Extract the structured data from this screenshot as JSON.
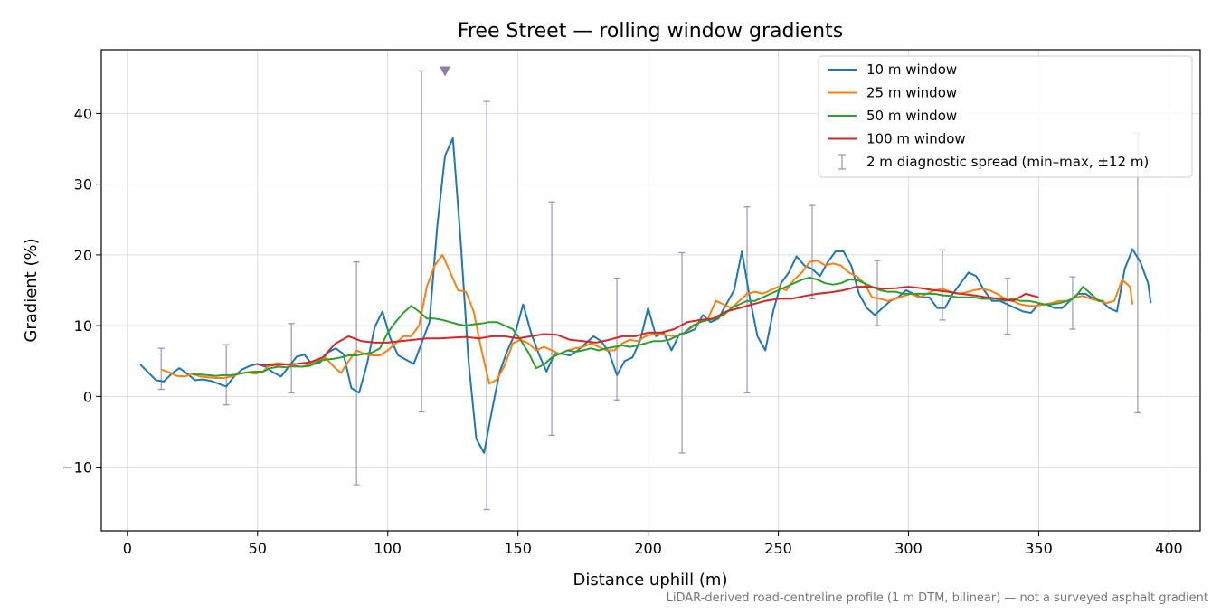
{
  "chart_data": {
    "type": "line",
    "title": "Free Street — rolling window gradients",
    "xlabel": "Distance uphill (m)",
    "ylabel": "Gradient (%)",
    "footnote": "LiDAR-derived road-centreline profile (1 m DTM, bilinear) — not a surveyed asphalt gradient",
    "xlim": [
      -10,
      412
    ],
    "ylim": [
      -19,
      49
    ],
    "xticks": [
      0,
      50,
      100,
      150,
      200,
      250,
      300,
      350,
      400
    ],
    "yticks": [
      -10,
      0,
      10,
      20,
      30,
      40
    ],
    "xtick_labels": [
      "0",
      "50",
      "100",
      "150",
      "200",
      "250",
      "300",
      "350",
      "400"
    ],
    "ytick_labels": [
      "−10",
      "0",
      "10",
      "20",
      "30",
      "40"
    ],
    "grid": true,
    "legend_position": "top-right",
    "series": [
      {
        "name": "10 m window",
        "color": "#1f77b4",
        "x": [
          5,
          8,
          11,
          14,
          17,
          20,
          23,
          26,
          29,
          32,
          35,
          38,
          41,
          44,
          47,
          50,
          53,
          56,
          59,
          62,
          65,
          68,
          71,
          74,
          77,
          80,
          83,
          86,
          89,
          92,
          95,
          98,
          101,
          104,
          107,
          110,
          113,
          116,
          119,
          122,
          125,
          128,
          131,
          134,
          137,
          140,
          143,
          146,
          149,
          152,
          155,
          158,
          161,
          164,
          167,
          170,
          173,
          176,
          179,
          182,
          185,
          188,
          191,
          194,
          197,
          200,
          203,
          206,
          209,
          212,
          215,
          218,
          221,
          224,
          227,
          230,
          233,
          236,
          239,
          242,
          245,
          248,
          251,
          254,
          257,
          260,
          263,
          266,
          269,
          272,
          275,
          278,
          281,
          284,
          287,
          290,
          293,
          296,
          299,
          302,
          305,
          308,
          311,
          314,
          317,
          320,
          323,
          326,
          329,
          332,
          335,
          338,
          341,
          344,
          347,
          350,
          353,
          356,
          359,
          362,
          365,
          368,
          371,
          374,
          377,
          380,
          383,
          386,
          389,
          392,
          393
        ],
        "values": [
          4.5,
          3.4,
          2.3,
          2.1,
          3.2,
          4.0,
          3.2,
          2.3,
          2.4,
          2.2,
          1.8,
          1.4,
          2.8,
          3.8,
          4.3,
          4.6,
          4.2,
          3.4,
          2.8,
          4.2,
          5.6,
          5.9,
          4.5,
          4.8,
          6.2,
          6.8,
          6.0,
          1.2,
          0.5,
          4.5,
          9.8,
          12.0,
          8.2,
          5.8,
          5.2,
          4.6,
          7.5,
          10.5,
          24.0,
          34.0,
          36.5,
          22.0,
          5.0,
          -6.0,
          -8.0,
          -2.0,
          3.5,
          6.5,
          9.0,
          13.0,
          9.0,
          6.0,
          3.5,
          6.0,
          6.0,
          5.8,
          6.5,
          7.5,
          8.5,
          7.8,
          6.2,
          3.0,
          5.0,
          5.5,
          8.0,
          12.5,
          8.5,
          9.0,
          6.5,
          8.8,
          9.0,
          9.5,
          11.5,
          10.5,
          11.0,
          13.0,
          15.0,
          20.5,
          14.0,
          8.5,
          6.5,
          12.0,
          16.0,
          17.5,
          19.8,
          18.5,
          18.0,
          17.0,
          19.0,
          20.5,
          20.5,
          18.5,
          14.5,
          12.5,
          11.5,
          12.5,
          13.5,
          14.0,
          15.0,
          14.5,
          14.0,
          14.0,
          12.5,
          12.5,
          14.5,
          16.0,
          17.5,
          17.0,
          15.0,
          13.5,
          13.5,
          13.0,
          12.5,
          12.0,
          11.8,
          13.0,
          13.0,
          12.5,
          12.5,
          13.5,
          14.5,
          14.5,
          13.8,
          13.5,
          12.5,
          12.0,
          18.0,
          20.8,
          19.0,
          16.0,
          13.2
        ]
      },
      {
        "name": "25 m window",
        "color": "#ff7f0e",
        "x": [
          13,
          16,
          19,
          22,
          25,
          28,
          31,
          34,
          37,
          40,
          43,
          46,
          49,
          52,
          55,
          58,
          61,
          64,
          67,
          70,
          73,
          76,
          79,
          82,
          85,
          88,
          91,
          94,
          97,
          100,
          103,
          106,
          109,
          112,
          115,
          118,
          121,
          124,
          127,
          130,
          133,
          136,
          139,
          142,
          145,
          148,
          151,
          154,
          157,
          160,
          163,
          166,
          169,
          172,
          175,
          178,
          181,
          184,
          187,
          190,
          193,
          196,
          199,
          202,
          205,
          208,
          211,
          214,
          217,
          220,
          223,
          226,
          229,
          232,
          235,
          238,
          241,
          244,
          247,
          250,
          253,
          256,
          259,
          262,
          265,
          268,
          271,
          274,
          277,
          280,
          283,
          286,
          289,
          292,
          295,
          298,
          301,
          304,
          307,
          310,
          313,
          316,
          319,
          322,
          325,
          328,
          331,
          334,
          337,
          340,
          343,
          346,
          349,
          352,
          355,
          358,
          361,
          364,
          367,
          370,
          373,
          376,
          379,
          382,
          385,
          386
        ],
        "values": [
          3.8,
          3.4,
          2.9,
          2.8,
          3.2,
          2.8,
          2.7,
          2.6,
          2.6,
          2.8,
          3.2,
          3.4,
          3.2,
          3.5,
          4.5,
          4.7,
          4.5,
          4.2,
          4.2,
          4.5,
          5.0,
          5.5,
          4.3,
          3.3,
          5.0,
          6.5,
          6.0,
          5.8,
          5.8,
          6.5,
          7.5,
          8.5,
          8.5,
          10.0,
          15.5,
          18.5,
          20.0,
          17.5,
          15.0,
          14.8,
          12.0,
          6.5,
          1.8,
          2.4,
          4.5,
          7.5,
          8.0,
          7.5,
          6.5,
          7.0,
          6.5,
          6.0,
          6.5,
          6.8,
          7.0,
          7.5,
          7.0,
          6.5,
          6.5,
          7.5,
          8.0,
          7.8,
          8.5,
          8.8,
          8.8,
          8.6,
          8.5,
          9.0,
          9.8,
          10.5,
          11.0,
          13.5,
          13.0,
          12.5,
          13.5,
          14.5,
          14.8,
          14.5,
          15.0,
          15.5,
          15.0,
          16.5,
          17.5,
          19.0,
          19.2,
          18.5,
          18.8,
          18.5,
          17.5,
          17.0,
          16.0,
          14.0,
          13.8,
          13.5,
          13.8,
          14.2,
          14.5,
          14.0,
          14.5,
          15.0,
          15.2,
          14.8,
          14.5,
          14.7,
          15.0,
          15.2,
          15.0,
          14.5,
          13.8,
          13.5,
          13.0,
          12.8,
          12.8,
          13.0,
          13.2,
          13.5,
          13.5,
          14.0,
          14.2,
          13.8,
          13.5,
          13.2,
          13.5,
          16.5,
          15.5,
          13.0
        ]
      },
      {
        "name": "50 m window",
        "color": "#2ca02c",
        "x": [
          25,
          28,
          31,
          34,
          37,
          40,
          43,
          46,
          49,
          52,
          55,
          58,
          61,
          64,
          67,
          70,
          73,
          76,
          79,
          82,
          85,
          88,
          91,
          94,
          97,
          100,
          103,
          106,
          109,
          112,
          115,
          118,
          121,
          124,
          127,
          130,
          133,
          136,
          139,
          142,
          145,
          148,
          151,
          154,
          157,
          160,
          163,
          166,
          169,
          172,
          175,
          178,
          181,
          184,
          187,
          190,
          193,
          196,
          199,
          202,
          205,
          208,
          211,
          214,
          217,
          220,
          223,
          226,
          229,
          232,
          235,
          238,
          241,
          244,
          247,
          250,
          253,
          256,
          259,
          262,
          265,
          268,
          271,
          274,
          277,
          280,
          283,
          286,
          289,
          292,
          295,
          298,
          301,
          304,
          307,
          310,
          313,
          316,
          319,
          322,
          325,
          328,
          331,
          334,
          337,
          340,
          343,
          346,
          349,
          352,
          355,
          358,
          361,
          364,
          367,
          370,
          373,
          375
        ],
        "values": [
          3.1,
          3.1,
          3.0,
          2.9,
          3.0,
          3.0,
          3.2,
          3.4,
          3.5,
          3.5,
          4.0,
          4.2,
          4.1,
          4.3,
          4.2,
          4.3,
          4.9,
          5.2,
          5.3,
          5.5,
          5.8,
          5.8,
          6.0,
          6.2,
          6.8,
          9.0,
          10.5,
          11.8,
          12.8,
          12.0,
          11.0,
          11.0,
          10.8,
          10.5,
          10.2,
          10.0,
          10.2,
          10.3,
          10.5,
          10.5,
          10.0,
          9.5,
          8.0,
          6.2,
          4.0,
          4.5,
          5.5,
          6.0,
          6.5,
          6.3,
          6.5,
          6.8,
          6.5,
          6.8,
          7.0,
          7.2,
          7.0,
          7.2,
          7.5,
          7.8,
          7.8,
          8.0,
          8.5,
          9.0,
          10.0,
          10.5,
          10.8,
          11.0,
          11.5,
          12.5,
          13.0,
          13.5,
          13.5,
          14.0,
          14.5,
          15.0,
          15.5,
          16.0,
          16.5,
          16.8,
          16.5,
          16.0,
          15.8,
          16.0,
          16.5,
          16.5,
          16.0,
          15.5,
          15.0,
          14.8,
          14.8,
          14.5,
          14.5,
          14.5,
          14.5,
          14.5,
          14.3,
          14.2,
          14.0,
          14.0,
          14.0,
          13.8,
          13.8,
          13.8,
          13.5,
          13.8,
          13.5,
          13.5,
          13.3,
          13.0,
          13.0,
          13.2,
          13.5,
          14.0,
          15.5,
          14.5,
          13.5,
          13.5
        ]
      },
      {
        "name": "100 m window",
        "color": "#d62728",
        "x": [
          50,
          55,
          60,
          65,
          70,
          75,
          80,
          85,
          90,
          95,
          100,
          105,
          110,
          115,
          120,
          125,
          130,
          135,
          140,
          145,
          150,
          155,
          160,
          165,
          170,
          175,
          180,
          185,
          190,
          195,
          200,
          205,
          210,
          215,
          220,
          225,
          230,
          235,
          240,
          245,
          250,
          255,
          260,
          265,
          270,
          275,
          280,
          285,
          290,
          295,
          300,
          305,
          310,
          315,
          320,
          325,
          330,
          335,
          340,
          345,
          350
        ],
        "values": [
          4.5,
          4.4,
          4.5,
          4.6,
          4.8,
          5.5,
          7.5,
          8.5,
          7.8,
          7.6,
          7.6,
          7.8,
          8.0,
          8.2,
          8.2,
          8.3,
          8.4,
          8.2,
          8.5,
          8.5,
          8.2,
          8.5,
          8.8,
          8.7,
          8.0,
          7.8,
          7.6,
          8.0,
          8.5,
          8.5,
          9.0,
          9.0,
          9.5,
          10.5,
          10.8,
          11.0,
          12.0,
          12.5,
          13.0,
          13.5,
          13.8,
          13.8,
          14.2,
          14.5,
          14.7,
          15.0,
          15.5,
          15.5,
          15.2,
          15.3,
          15.5,
          15.3,
          15.0,
          14.8,
          14.5,
          14.3,
          14.0,
          13.8,
          13.5,
          14.5,
          14.0
        ]
      }
    ],
    "diagnostic_spread": {
      "name": "2 m diagnostic spread (min–max, ±12 m)",
      "color": "#9a96bb",
      "x": [
        13,
        38,
        63,
        88,
        113,
        138,
        163,
        188,
        213,
        238,
        263,
        288,
        313,
        338,
        363,
        388
      ],
      "min": [
        1.0,
        -1.2,
        0.5,
        -12.5,
        -2.2,
        -16.0,
        -5.5,
        -0.5,
        -8.0,
        0.5,
        13.8,
        10.0,
        10.8,
        8.8,
        9.5,
        -2.3
      ],
      "max": [
        6.8,
        7.3,
        10.3,
        19.0,
        46.0,
        41.7,
        27.5,
        16.7,
        20.3,
        26.8,
        27.0,
        19.2,
        20.7,
        16.7,
        16.9,
        37.2
      ]
    },
    "clipped_marker": {
      "x": 122,
      "y": 46.0,
      "color": "#8e7dab"
    }
  }
}
